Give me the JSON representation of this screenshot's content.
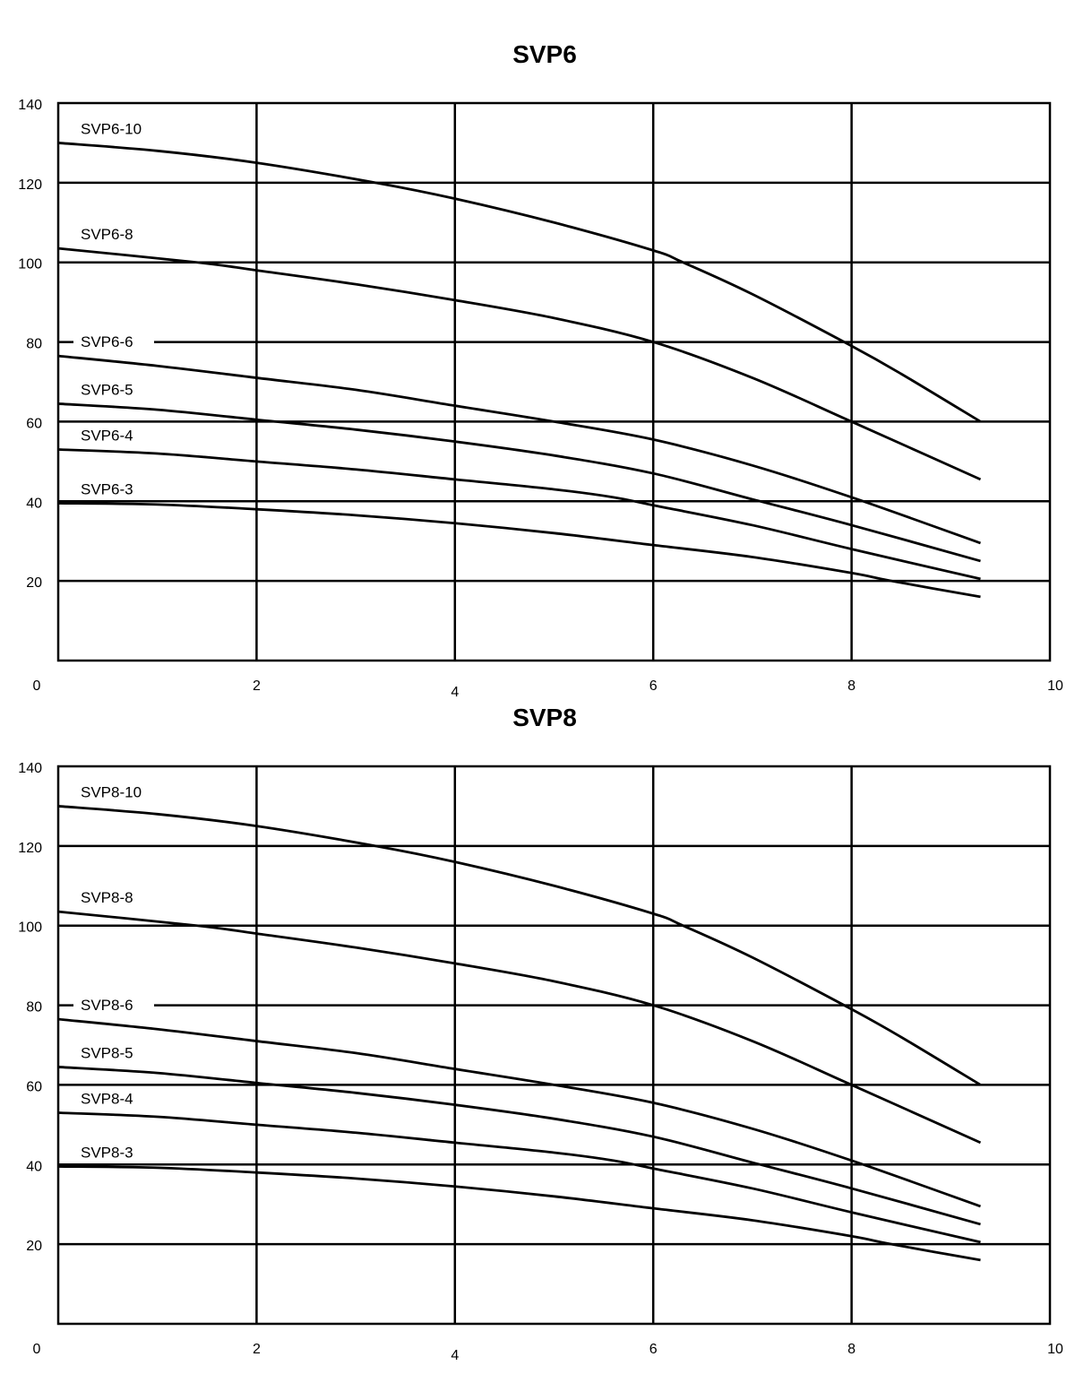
{
  "chart_data": [
    {
      "type": "line",
      "title": "SVP6",
      "xlabel": "",
      "ylabel": "",
      "xlim": [
        0,
        10
      ],
      "ylim": [
        0,
        140
      ],
      "xticks": [
        "0",
        "2",
        "4",
        "6",
        "8",
        "10"
      ],
      "yticks": [
        "20",
        "40",
        "60",
        "80",
        "100",
        "120",
        "140"
      ],
      "grid": true,
      "line_color": "#000000",
      "series": [
        {
          "name": "SVP6-10",
          "x": [
            0,
            1,
            2,
            3.2,
            4,
            5,
            6,
            6.3,
            7,
            8,
            8.5,
            9.3
          ],
          "y": [
            130,
            128,
            125,
            120,
            116,
            110,
            103,
            100,
            92,
            79,
            72,
            60
          ]
        },
        {
          "name": "SVP6-8",
          "x": [
            0,
            1.4,
            2,
            3,
            4,
            5,
            6,
            7,
            8,
            9.3
          ],
          "y": [
            103.5,
            100,
            98,
            94.5,
            90.5,
            86,
            80,
            71,
            60,
            45.5
          ]
        },
        {
          "name": "SVP6-6",
          "x": [
            0,
            1,
            2,
            3,
            4,
            5,
            6,
            7,
            8,
            9.3
          ],
          "y": [
            76.5,
            74,
            71,
            68,
            64,
            60,
            55.5,
            49,
            41,
            29.5
          ]
        },
        {
          "name": "SVP6-5",
          "x": [
            0,
            1,
            2,
            3,
            4,
            5,
            6,
            7,
            8,
            9.3
          ],
          "y": [
            64.5,
            63,
            60.5,
            58,
            55,
            51.5,
            47,
            40.5,
            34,
            25
          ]
        },
        {
          "name": "SVP6-4",
          "x": [
            0,
            1,
            2,
            3,
            4,
            5,
            5.6,
            6,
            7,
            8,
            9.3
          ],
          "y": [
            53,
            52,
            50,
            48,
            45.5,
            43,
            41,
            39,
            34,
            28,
            20.5
          ]
        },
        {
          "name": "SVP6-3",
          "x": [
            0,
            1,
            2,
            3,
            4,
            5,
            6,
            7,
            8,
            8.4,
            9.3
          ],
          "y": [
            39.5,
            39.2,
            38,
            36.5,
            34.5,
            32,
            29,
            26,
            22,
            20,
            16
          ]
        }
      ]
    },
    {
      "type": "line",
      "title": "SVP8",
      "xlabel": "",
      "ylabel": "",
      "xlim": [
        0,
        10
      ],
      "ylim": [
        0,
        140
      ],
      "xticks": [
        "0",
        "2",
        "4",
        "6",
        "8",
        "10"
      ],
      "yticks": [
        "20",
        "40",
        "60",
        "80",
        "100",
        "120",
        "140"
      ],
      "grid": true,
      "line_color": "#000000",
      "series": [
        {
          "name": "SVP8-10",
          "x": [
            0,
            1,
            2,
            3.2,
            4,
            5,
            6,
            6.3,
            7,
            8,
            8.5,
            9.3
          ],
          "y": [
            130,
            128,
            125,
            120,
            116,
            110,
            103,
            100,
            92,
            79,
            72,
            60
          ]
        },
        {
          "name": "SVP8-8",
          "x": [
            0,
            1.4,
            2,
            3,
            4,
            5,
            6,
            7,
            8,
            9.3
          ],
          "y": [
            103.5,
            100,
            98,
            94.5,
            90.5,
            86,
            80,
            71,
            60,
            45.5
          ]
        },
        {
          "name": "SVP8-6",
          "x": [
            0,
            1,
            2,
            3,
            4,
            5,
            6,
            7,
            8,
            9.3
          ],
          "y": [
            76.5,
            74,
            71,
            68,
            64,
            60,
            55.5,
            49,
            41,
            29.5
          ]
        },
        {
          "name": "SVP8-5",
          "x": [
            0,
            1,
            2,
            3,
            4,
            5,
            6,
            7,
            8,
            9.3
          ],
          "y": [
            64.5,
            63,
            60.5,
            58,
            55,
            51.5,
            47,
            40.5,
            34,
            25
          ]
        },
        {
          "name": "SVP8-4",
          "x": [
            0,
            1,
            2,
            3,
            4,
            5,
            5.6,
            6,
            7,
            8,
            9.3
          ],
          "y": [
            53,
            52,
            50,
            48,
            45.5,
            43,
            41,
            39,
            34,
            28,
            20.5
          ]
        },
        {
          "name": "SVP8-3",
          "x": [
            0,
            1,
            2,
            3,
            4,
            5,
            6,
            7,
            8,
            8.4,
            9.3
          ],
          "y": [
            39.5,
            39.2,
            38,
            36.5,
            34.5,
            32,
            29,
            26,
            22,
            20,
            16
          ]
        }
      ]
    }
  ]
}
